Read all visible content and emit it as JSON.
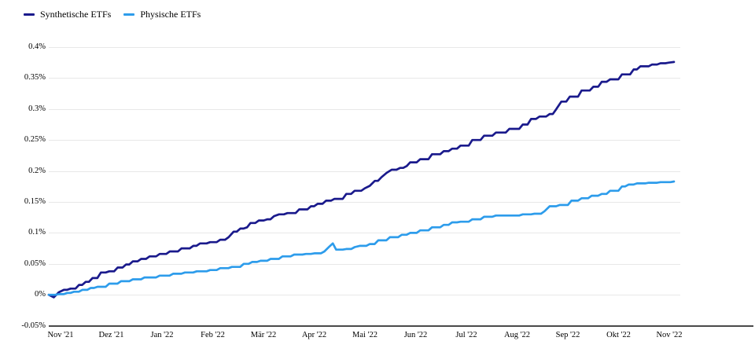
{
  "chart_data": {
    "type": "line",
    "title": "",
    "legend_position": "top-left",
    "grid": "horizontal",
    "x_axis": {
      "tick_labels": [
        "Nov '21",
        "Dez '21",
        "Jan '22",
        "Feb '22",
        "Mär '22",
        "Apr '22",
        "Mai '22",
        "Jun '22",
        "Jul '22",
        "Aug '22",
        "Sep '22",
        "Okt '22",
        "Nov '22"
      ],
      "domain_days": [
        0,
        372
      ]
    },
    "y_axis": {
      "unit": "percent",
      "range": [
        -0.05,
        0.4
      ],
      "ticks": [
        {
          "label": "0.4%",
          "value": 0.4
        },
        {
          "label": "0.35%",
          "value": 0.35
        },
        {
          "label": "0.3%",
          "value": 0.3
        },
        {
          "label": "0.25%",
          "value": 0.25
        },
        {
          "label": "0.2%",
          "value": 0.2
        },
        {
          "label": "0.15%",
          "value": 0.15
        },
        {
          "label": "0.1%",
          "value": 0.1
        },
        {
          "label": "0.05%",
          "value": 0.05
        },
        {
          "label": "0%",
          "value": 0.0
        },
        {
          "label": "-0.05%",
          "value": -0.05
        }
      ]
    },
    "series": [
      {
        "name": "Synthetische ETFs",
        "color": "#1a1a8c",
        "points": [
          [
            0,
            0.0
          ],
          [
            3,
            -0.004
          ],
          [
            6,
            0.004
          ],
          [
            9,
            0.008
          ],
          [
            13,
            0.01
          ],
          [
            18,
            0.016
          ],
          [
            22,
            0.021
          ],
          [
            26,
            0.027
          ],
          [
            31,
            0.036
          ],
          [
            36,
            0.038
          ],
          [
            41,
            0.044
          ],
          [
            46,
            0.049
          ],
          [
            50,
            0.054
          ],
          [
            55,
            0.058
          ],
          [
            60,
            0.062
          ],
          [
            66,
            0.066
          ],
          [
            72,
            0.07
          ],
          [
            79,
            0.075
          ],
          [
            86,
            0.079
          ],
          [
            90,
            0.083
          ],
          [
            96,
            0.085
          ],
          [
            102,
            0.089
          ],
          [
            107,
            0.093
          ],
          [
            110,
            0.102
          ],
          [
            114,
            0.107
          ],
          [
            118,
            0.109
          ],
          [
            120,
            0.116
          ],
          [
            125,
            0.12
          ],
          [
            130,
            0.122
          ],
          [
            134,
            0.127
          ],
          [
            137,
            0.13
          ],
          [
            142,
            0.132
          ],
          [
            149,
            0.138
          ],
          [
            156,
            0.143
          ],
          [
            160,
            0.147
          ],
          [
            165,
            0.152
          ],
          [
            170,
            0.155
          ],
          [
            177,
            0.163
          ],
          [
            182,
            0.168
          ],
          [
            188,
            0.172
          ],
          [
            191,
            0.176
          ],
          [
            194,
            0.184
          ],
          [
            198,
            0.19
          ],
          [
            201,
            0.197
          ],
          [
            204,
            0.202
          ],
          [
            209,
            0.205
          ],
          [
            213,
            0.208
          ],
          [
            215,
            0.214
          ],
          [
            221,
            0.219
          ],
          [
            228,
            0.227
          ],
          [
            235,
            0.232
          ],
          [
            240,
            0.236
          ],
          [
            245,
            0.241
          ],
          [
            252,
            0.25
          ],
          [
            259,
            0.257
          ],
          [
            266,
            0.262
          ],
          [
            274,
            0.268
          ],
          [
            282,
            0.275
          ],
          [
            287,
            0.284
          ],
          [
            292,
            0.288
          ],
          [
            298,
            0.292
          ],
          [
            302,
            0.3
          ],
          [
            305,
            0.312
          ],
          [
            310,
            0.32
          ],
          [
            317,
            0.33
          ],
          [
            324,
            0.336
          ],
          [
            329,
            0.344
          ],
          [
            334,
            0.348
          ],
          [
            341,
            0.356
          ],
          [
            348,
            0.364
          ],
          [
            352,
            0.369
          ],
          [
            359,
            0.372
          ],
          [
            364,
            0.374
          ],
          [
            369,
            0.375
          ],
          [
            372,
            0.376
          ]
        ]
      },
      {
        "name": "Physische ETFs",
        "color": "#2d9ceb",
        "points": [
          [
            0,
            0.0
          ],
          [
            6,
            0.001
          ],
          [
            11,
            0.003
          ],
          [
            15,
            0.005
          ],
          [
            20,
            0.008
          ],
          [
            25,
            0.011
          ],
          [
            29,
            0.013
          ],
          [
            36,
            0.018
          ],
          [
            43,
            0.022
          ],
          [
            50,
            0.025
          ],
          [
            57,
            0.028
          ],
          [
            66,
            0.031
          ],
          [
            74,
            0.034
          ],
          [
            81,
            0.036
          ],
          [
            88,
            0.038
          ],
          [
            96,
            0.04
          ],
          [
            102,
            0.043
          ],
          [
            109,
            0.045
          ],
          [
            116,
            0.05
          ],
          [
            121,
            0.053
          ],
          [
            126,
            0.055
          ],
          [
            132,
            0.058
          ],
          [
            139,
            0.062
          ],
          [
            146,
            0.065
          ],
          [
            153,
            0.066
          ],
          [
            158,
            0.067
          ],
          [
            164,
            0.07
          ],
          [
            167,
            0.078
          ],
          [
            169,
            0.083
          ],
          [
            171,
            0.073
          ],
          [
            177,
            0.074
          ],
          [
            182,
            0.077
          ],
          [
            185,
            0.079
          ],
          [
            191,
            0.082
          ],
          [
            196,
            0.088
          ],
          [
            203,
            0.093
          ],
          [
            210,
            0.097
          ],
          [
            215,
            0.1
          ],
          [
            221,
            0.104
          ],
          [
            228,
            0.109
          ],
          [
            235,
            0.113
          ],
          [
            240,
            0.117
          ],
          [
            245,
            0.118
          ],
          [
            252,
            0.122
          ],
          [
            259,
            0.126
          ],
          [
            266,
            0.128
          ],
          [
            275,
            0.128
          ],
          [
            282,
            0.13
          ],
          [
            289,
            0.131
          ],
          [
            295,
            0.135
          ],
          [
            298,
            0.143
          ],
          [
            304,
            0.145
          ],
          [
            311,
            0.152
          ],
          [
            317,
            0.156
          ],
          [
            323,
            0.16
          ],
          [
            329,
            0.163
          ],
          [
            334,
            0.168
          ],
          [
            341,
            0.175
          ],
          [
            345,
            0.178
          ],
          [
            350,
            0.18
          ],
          [
            357,
            0.181
          ],
          [
            364,
            0.182
          ],
          [
            372,
            0.183
          ]
        ]
      }
    ]
  },
  "colors": {
    "grid": "#e8e8e8",
    "axis": "#4a4a4a",
    "text": "#000000",
    "background": "#ffffff"
  }
}
